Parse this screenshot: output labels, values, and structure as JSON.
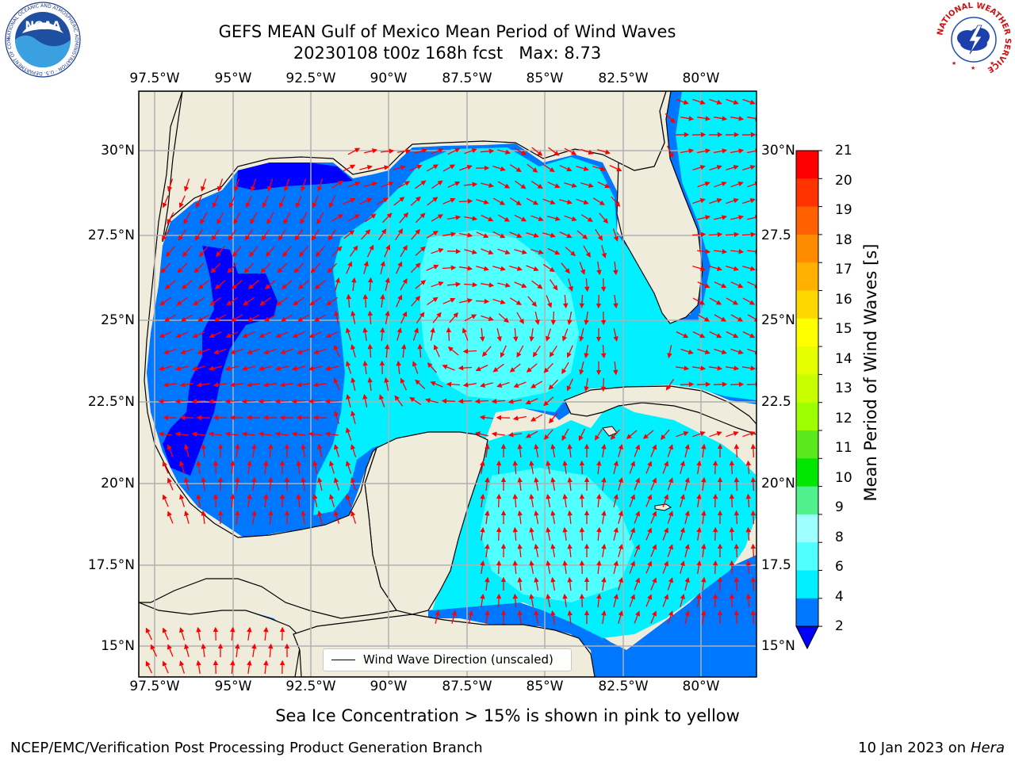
{
  "title": {
    "line1": "GEFS MEAN Gulf of Mexico Mean Period of Wind Waves",
    "date_fcst": "20230108 t00z 168h fcst",
    "max": "Max: 8.73"
  },
  "axes": {
    "lon_labels": [
      "97.5°W",
      "95°W",
      "92.5°W",
      "90°W",
      "87.5°W",
      "85°W",
      "82.5°W",
      "80°W"
    ],
    "lat_labels": [
      "30°N",
      "27.5°N",
      "25°N",
      "22.5°N",
      "20°N",
      "17.5°N",
      "15°N"
    ],
    "lat_labels_right": [
      "30°N",
      "27.5",
      "25°N",
      "22.5",
      "20°N",
      "17.5",
      "15°N"
    ],
    "grid": true
  },
  "colorbar": {
    "title": "Mean Period of Wind Waves [s]",
    "ticks": [
      "21",
      "20",
      "19",
      "18",
      "17",
      "16",
      "15",
      "14",
      "13",
      "12",
      "11",
      "10",
      "9",
      "8",
      "6",
      "4",
      "2"
    ],
    "colors": [
      "#ff0000",
      "#ff3300",
      "#ff6000",
      "#ff8c00",
      "#ffb000",
      "#ffd700",
      "#ffff00",
      "#e6ff00",
      "#c8ff00",
      "#9eff00",
      "#5be81c",
      "#00e600",
      "#50f08c",
      "#a0ffff",
      "#50ffff",
      "#00f0ff",
      "#0077ff"
    ],
    "under_color": "#0000ff",
    "extend": "min"
  },
  "legend": {
    "text": "Wind Wave Direction (unscaled)"
  },
  "colors": {
    "land": "#efecdc",
    "deep_blue": "#0000ff",
    "blue": "#0077ff",
    "cyan": "#00f0ff",
    "light_cyan": "#50ffff",
    "pale_cyan": "#a0ffff",
    "arrow": "#ff0000",
    "grid": "#b0b0b0"
  },
  "notes": {
    "ice": "Sea Ice Concentration > 15% is shown in pink to yellow"
  },
  "footer": {
    "left": "NCEP/EMC/Verification Post Processing Product Generation Branch",
    "right_date": "10 Jan 2023 on",
    "right_machine": "Hera"
  },
  "logos": {
    "noaa": {
      "text": "NOAA",
      "ring": "NATIONAL OCEANIC AND ATMOSPHERIC ADMINISTRATION · U.S. DEPARTMENT OF COMMERCE"
    },
    "nws": {
      "ring": "NATIONAL WEATHER SERVICE"
    }
  }
}
